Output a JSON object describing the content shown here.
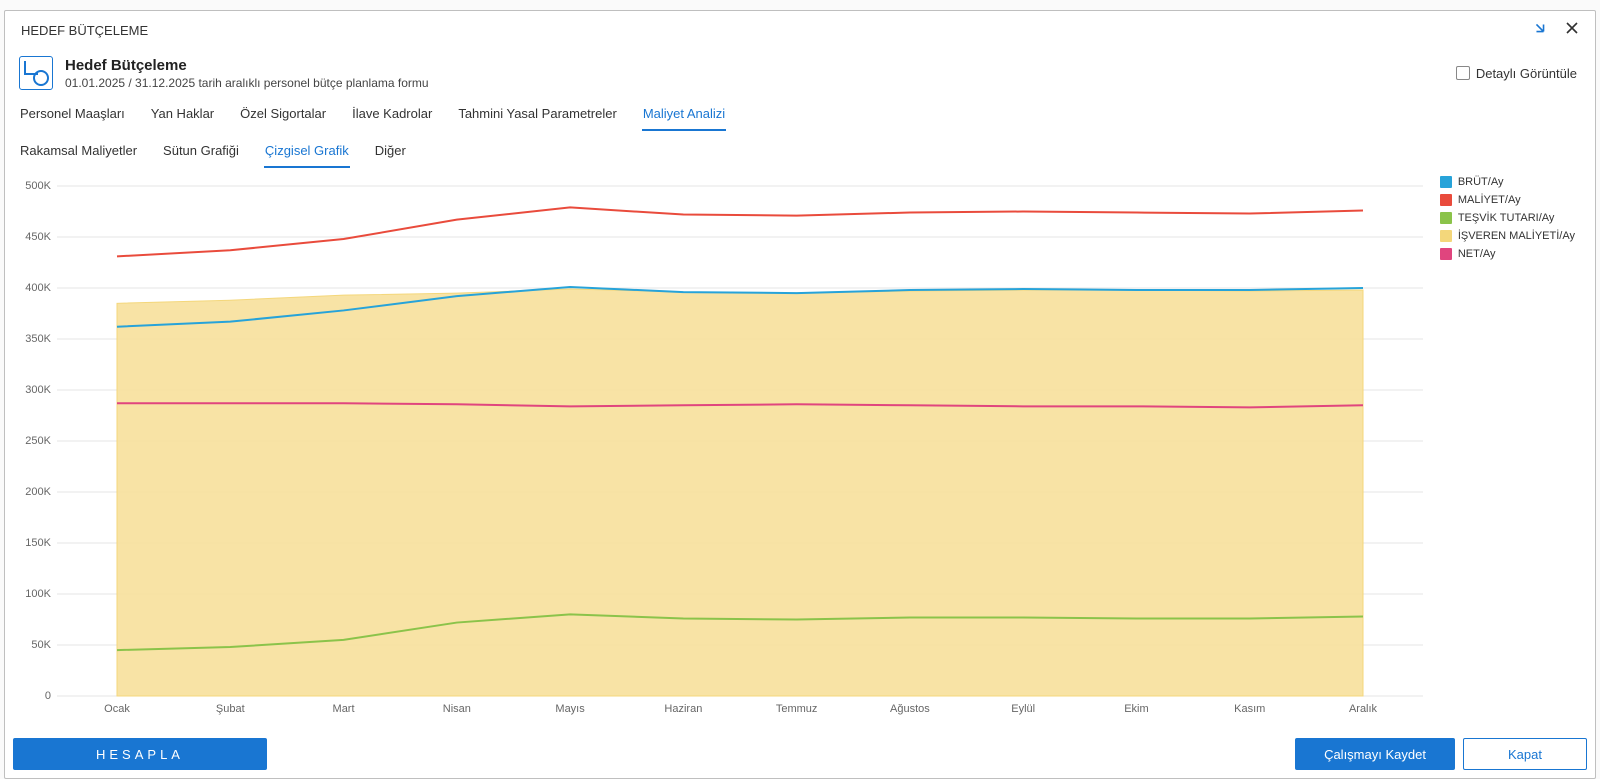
{
  "window_title": "HEDEF BÜTÇELEME",
  "page": {
    "title": "Hedef Bütçeleme",
    "subtitle": "01.01.2025 / 31.12.2025 tarih aralıklı personel bütçe planlama formu",
    "detail_toggle_label": "Detaylı Görüntüle"
  },
  "tabs_main": [
    {
      "label": "Personel Maaşları",
      "active": false
    },
    {
      "label": "Yan Haklar",
      "active": false
    },
    {
      "label": "Özel Sigortalar",
      "active": false
    },
    {
      "label": "İlave Kadrolar",
      "active": false
    },
    {
      "label": "Tahmini Yasal Parametreler",
      "active": false
    },
    {
      "label": "Maliyet Analizi",
      "active": true
    }
  ],
  "tabs_sub": [
    {
      "label": "Rakamsal Maliyetler",
      "active": false
    },
    {
      "label": "Sütun Grafiği",
      "active": false
    },
    {
      "label": "Çizgisel Grafik",
      "active": true
    },
    {
      "label": "Diğer",
      "active": false
    }
  ],
  "footer": {
    "calculate": "HESAPLA",
    "save": "Çalışmayı Kaydet",
    "close": "Kapat"
  },
  "chart": {
    "type": "line-area",
    "background_color": "#ffffff",
    "grid_color": "#e5e5e5",
    "axis_text_color": "#666666",
    "label_fontsize": 11,
    "ylim": [
      0,
      500000
    ],
    "ytick_step": 50000,
    "yticks": [
      "0",
      "50K",
      "100K",
      "150K",
      "200K",
      "250K",
      "300K",
      "350K",
      "400K",
      "450K",
      "500K"
    ],
    "categories": [
      "Ocak",
      "Şubat",
      "Mart",
      "Nisan",
      "Mayıs",
      "Haziran",
      "Temmuz",
      "Ağustos",
      "Eylül",
      "Ekim",
      "Kasım",
      "Aralık"
    ],
    "series": [
      {
        "name": "BRÜT/Ay",
        "type": "line",
        "color": "#27a3d9",
        "width": 2,
        "values": [
          362000,
          367000,
          378000,
          392000,
          401000,
          396000,
          395000,
          398000,
          399000,
          398000,
          398000,
          400000
        ]
      },
      {
        "name": "MALİYET/Ay",
        "type": "line",
        "color": "#e94b3c",
        "width": 2,
        "values": [
          431000,
          437000,
          448000,
          467000,
          479000,
          472000,
          471000,
          474000,
          475000,
          474000,
          473000,
          476000
        ]
      },
      {
        "name": "TEŞVİK TUTARI/Ay",
        "type": "line",
        "color": "#8bc34a",
        "width": 2,
        "values": [
          45000,
          48000,
          55000,
          72000,
          80000,
          76000,
          75000,
          77000,
          77000,
          76000,
          76000,
          78000
        ]
      },
      {
        "name": "İŞVEREN MALİYETİ/Ay",
        "type": "area",
        "color": "#f4d77b",
        "fill": "#f7e09b",
        "fill_opacity": 0.9,
        "width": 1,
        "values": [
          385000,
          388000,
          393000,
          395000,
          399000,
          396000,
          395000,
          397000,
          398000,
          398000,
          397000,
          398000
        ]
      },
      {
        "name": "NET/Ay",
        "type": "line",
        "color": "#e0457e",
        "width": 2,
        "values": [
          287000,
          287000,
          287000,
          286000,
          284000,
          285000,
          286000,
          285000,
          284000,
          284000,
          283000,
          285000
        ]
      }
    ],
    "legend_position": "right"
  }
}
